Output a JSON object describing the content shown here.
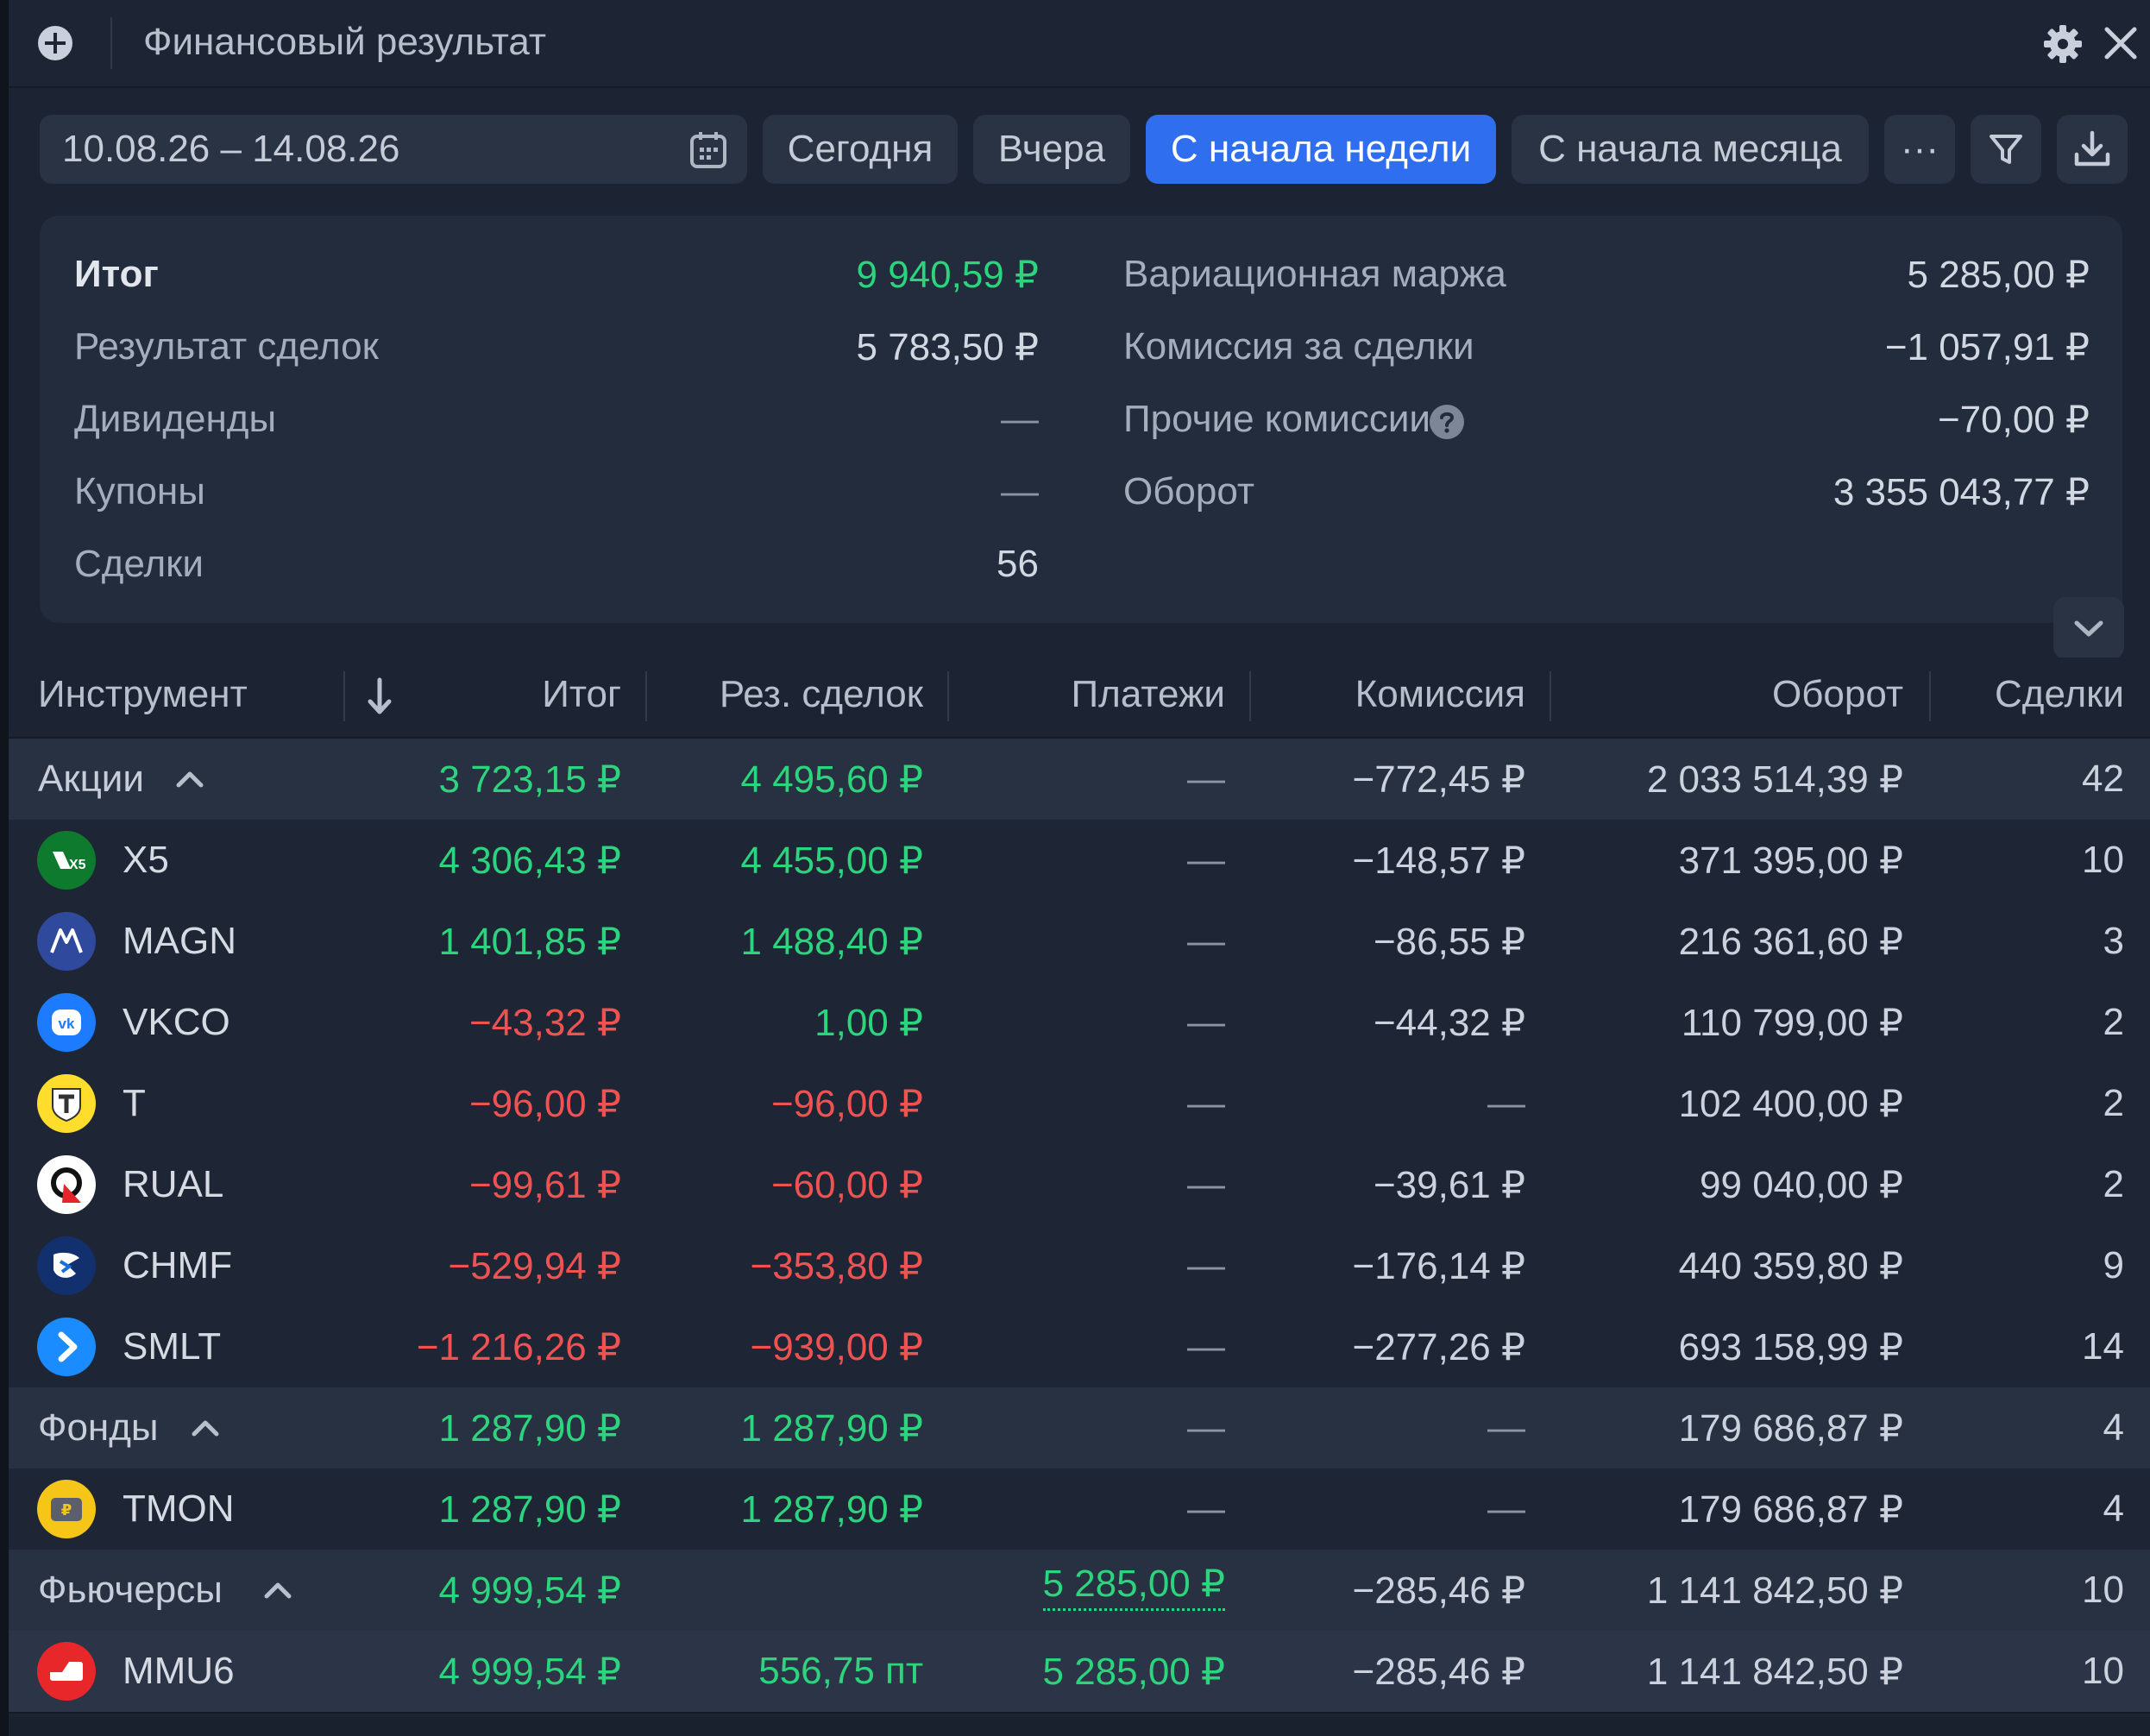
{
  "header": {
    "title": "Финансовый результат"
  },
  "toolbar": {
    "date_range": "10.08.26 – 14.08.26",
    "presets": [
      "Сегодня",
      "Вчера",
      "С начала недели",
      "С начала месяца"
    ],
    "active_preset": "С начала недели",
    "more_label": "···"
  },
  "summary": {
    "left": [
      {
        "label": "Итог",
        "value": "9 940,59 ₽"
      },
      {
        "label": "Результат сделок",
        "value": "5 783,50 ₽"
      },
      {
        "label": "Дивиденды",
        "value": "—"
      },
      {
        "label": "Купоны",
        "value": "—"
      },
      {
        "label": "Сделки",
        "value": "56"
      }
    ],
    "right": [
      {
        "label": "Вариационная маржа",
        "value": "5 285,00 ₽"
      },
      {
        "label": "Комиссия за сделки",
        "value": "−1 057,91 ₽"
      },
      {
        "label": "Прочие комиссии",
        "value": "−70,00 ₽"
      },
      {
        "label": "Оборот",
        "value": "3 355 043,77 ₽"
      }
    ]
  },
  "table": {
    "columns": [
      "Инструмент",
      "Итог",
      "Рез. сделок",
      "Платежи",
      "Комиссия",
      "Оборот",
      "Сделки"
    ],
    "rows": [
      {
        "type": "group",
        "name": "Акции",
        "total": "3 723,15 ₽",
        "deals_result": "4 495,60 ₽",
        "payments": "—",
        "commission": "−772,45 ₽",
        "turnover": "2 033 514,39 ₽",
        "deals": "42"
      },
      {
        "type": "item",
        "logo": "x5-logo",
        "name": "X5",
        "total": "4 306,43 ₽",
        "deals_result": "4 455,00 ₽",
        "payments": "—",
        "commission": "−148,57 ₽",
        "turnover": "371 395,00 ₽",
        "deals": "10"
      },
      {
        "type": "item",
        "logo": "magn-logo",
        "name": "MAGN",
        "total": "1 401,85 ₽",
        "deals_result": "1 488,40 ₽",
        "payments": "—",
        "commission": "−86,55 ₽",
        "turnover": "216 361,60 ₽",
        "deals": "3"
      },
      {
        "type": "item",
        "logo": "vk-logo",
        "name": "VKCO",
        "total": "−43,32 ₽",
        "deals_result": "1,00 ₽",
        "payments": "—",
        "commission": "−44,32 ₽",
        "turnover": "110 799,00 ₽",
        "deals": "2"
      },
      {
        "type": "item",
        "logo": "t-logo",
        "name": "T",
        "total": "−96,00 ₽",
        "deals_result": "−96,00 ₽",
        "payments": "—",
        "commission": "—",
        "turnover": "102 400,00 ₽",
        "deals": "2"
      },
      {
        "type": "item",
        "logo": "rual-logo",
        "name": "RUAL",
        "total": "−99,61 ₽",
        "deals_result": "−60,00 ₽",
        "payments": "—",
        "commission": "−39,61 ₽",
        "turnover": "99 040,00 ₽",
        "deals": "2"
      },
      {
        "type": "item",
        "logo": "chmf-logo",
        "name": "CHMF",
        "total": "−529,94 ₽",
        "deals_result": "−353,80 ₽",
        "payments": "—",
        "commission": "−176,14 ₽",
        "turnover": "440 359,80 ₽",
        "deals": "9"
      },
      {
        "type": "item",
        "logo": "smlt-logo",
        "name": "SMLT",
        "total": "−1 216,26 ₽",
        "deals_result": "−939,00 ₽",
        "payments": "—",
        "commission": "−277,26 ₽",
        "turnover": "693 158,99 ₽",
        "deals": "14"
      },
      {
        "type": "group",
        "name": "Фонды",
        "total": "1 287,90 ₽",
        "deals_result": "1 287,90 ₽",
        "payments": "—",
        "commission": "—",
        "turnover": "179 686,87 ₽",
        "deals": "4"
      },
      {
        "type": "item",
        "logo": "tmon-logo",
        "name": "TMON",
        "total": "1 287,90 ₽",
        "deals_result": "1 287,90 ₽",
        "payments": "—",
        "commission": "—",
        "turnover": "179 686,87 ₽",
        "deals": "4"
      },
      {
        "type": "group",
        "name": "Фьючерсы",
        "total": "4 999,54 ₽",
        "deals_result": "",
        "payments": "5 285,00 ₽",
        "commission": "−285,46 ₽",
        "turnover": "1 141 842,50 ₽",
        "deals": "10"
      },
      {
        "type": "item",
        "logo": "mmu6-logo",
        "name": "MMU6",
        "total": "4 999,54 ₽",
        "deals_result": "556,75 пт",
        "payments": "5 285,00 ₽",
        "commission": "−285,46 ₽",
        "turnover": "1 141 842,50 ₽",
        "deals": "10"
      }
    ]
  },
  "colors": {
    "background": "#1c2433",
    "panel": "#232c3c",
    "accent": "#2f6fef",
    "positive": "#2bd47d",
    "negative": "#f05252"
  }
}
